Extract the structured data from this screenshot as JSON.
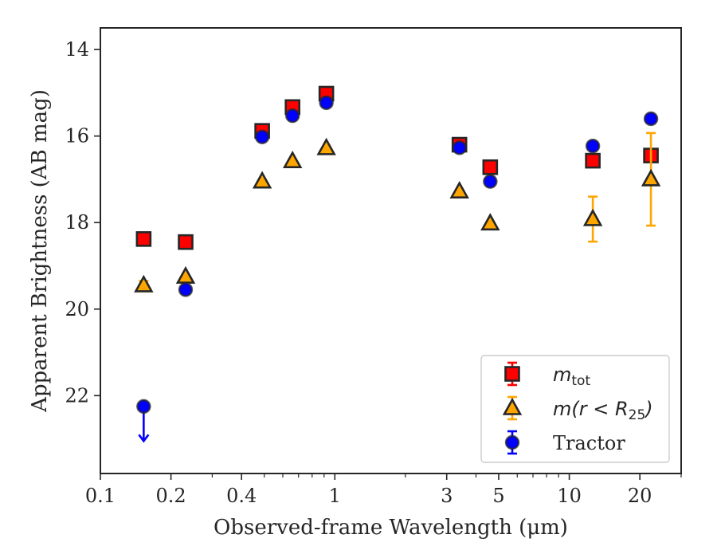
{
  "chart_data": {
    "type": "scatter",
    "title": "",
    "xlabel": "Observed-frame Wavelength (μm)",
    "ylabel": "Apparent Brightness (AB mag)",
    "x_scale": "log",
    "xlim": [
      0.1,
      30
    ],
    "ylim": [
      23.8,
      13.5
    ],
    "y_inverted": true,
    "grid": false,
    "legend_position": "lower-right",
    "x_ticks": [
      {
        "value": 0.1,
        "label": "0.1"
      },
      {
        "value": 0.2,
        "label": "0.2"
      },
      {
        "value": 0.4,
        "label": "0.4"
      },
      {
        "value": 1,
        "label": "1"
      },
      {
        "value": 3,
        "label": "3"
      },
      {
        "value": 5,
        "label": "5"
      },
      {
        "value": 10,
        "label": "10"
      },
      {
        "value": 20,
        "label": "20"
      }
    ],
    "x_minor_ticks": [
      0.3,
      0.5,
      0.6,
      0.7,
      0.8,
      0.9,
      2,
      4,
      6,
      7,
      8,
      9,
      30
    ],
    "y_ticks": [
      {
        "value": 14,
        "label": "14"
      },
      {
        "value": 16,
        "label": "16"
      },
      {
        "value": 18,
        "label": "18"
      },
      {
        "value": 20,
        "label": "20"
      },
      {
        "value": 22,
        "label": "22"
      }
    ],
    "series": [
      {
        "name": "m_tot",
        "legend_main": "m",
        "legend_sub": "tot",
        "marker": "square",
        "color": "#ff0000",
        "edge_color": "#262626",
        "error_color": "#ff0000",
        "points": [
          {
            "x": 0.153,
            "y": 18.38,
            "err": 0
          },
          {
            "x": 0.231,
            "y": 18.45,
            "err": 0
          },
          {
            "x": 0.49,
            "y": 15.88,
            "err": 0
          },
          {
            "x": 0.66,
            "y": 15.33,
            "err": 0
          },
          {
            "x": 0.92,
            "y": 15.02,
            "err": 0
          },
          {
            "x": 3.4,
            "y": 16.2,
            "err": 0
          },
          {
            "x": 4.6,
            "y": 16.72,
            "err": 0
          },
          {
            "x": 12.6,
            "y": 16.57,
            "err": 0
          },
          {
            "x": 22.3,
            "y": 16.45,
            "err": 0
          }
        ]
      },
      {
        "name": "m(r < R25)",
        "legend_main": "m(r < R",
        "legend_sub": "25",
        "legend_tail": ")",
        "marker": "triangle",
        "color": "#ffa500",
        "edge_color": "#262626",
        "error_color": "#ffa500",
        "points": [
          {
            "x": 0.153,
            "y": 19.45,
            "err": 0.1
          },
          {
            "x": 0.231,
            "y": 19.25,
            "err": 0
          },
          {
            "x": 0.49,
            "y": 17.05,
            "err": 0
          },
          {
            "x": 0.66,
            "y": 16.58,
            "err": 0
          },
          {
            "x": 0.92,
            "y": 16.28,
            "err": 0
          },
          {
            "x": 3.4,
            "y": 17.28,
            "err": 0
          },
          {
            "x": 4.6,
            "y": 18.02,
            "err": 0
          },
          {
            "x": 12.6,
            "y": 17.92,
            "err": 0.52
          },
          {
            "x": 22.3,
            "y": 17.0,
            "err": 1.07
          }
        ]
      },
      {
        "name": "Tractor",
        "marker": "circle",
        "color": "#0000ff",
        "edge_color": "#262626",
        "error_color": "#0000ff",
        "points": [
          {
            "x": 0.153,
            "y": 22.25,
            "err": 0,
            "upper_limit": true,
            "arrow_to": 23.05
          },
          {
            "x": 0.231,
            "y": 19.55,
            "err": 0
          },
          {
            "x": 0.49,
            "y": 16.02,
            "err": 0
          },
          {
            "x": 0.66,
            "y": 15.53,
            "err": 0
          },
          {
            "x": 0.92,
            "y": 15.23,
            "err": 0
          },
          {
            "x": 3.4,
            "y": 16.27,
            "err": 0
          },
          {
            "x": 4.6,
            "y": 17.05,
            "err": 0
          },
          {
            "x": 12.6,
            "y": 16.23,
            "err": 0
          },
          {
            "x": 22.3,
            "y": 15.6,
            "err": 0
          }
        ]
      }
    ],
    "legend": {
      "entries": [
        {
          "series": 0,
          "label_main": "m",
          "label_sub": "tot",
          "label_tail": ""
        },
        {
          "series": 1,
          "label_main": "m(r < R",
          "label_sub": "25",
          "label_tail": ")"
        },
        {
          "series": 2,
          "label_main": "Tractor",
          "label_sub": "",
          "label_tail": ""
        }
      ]
    }
  }
}
